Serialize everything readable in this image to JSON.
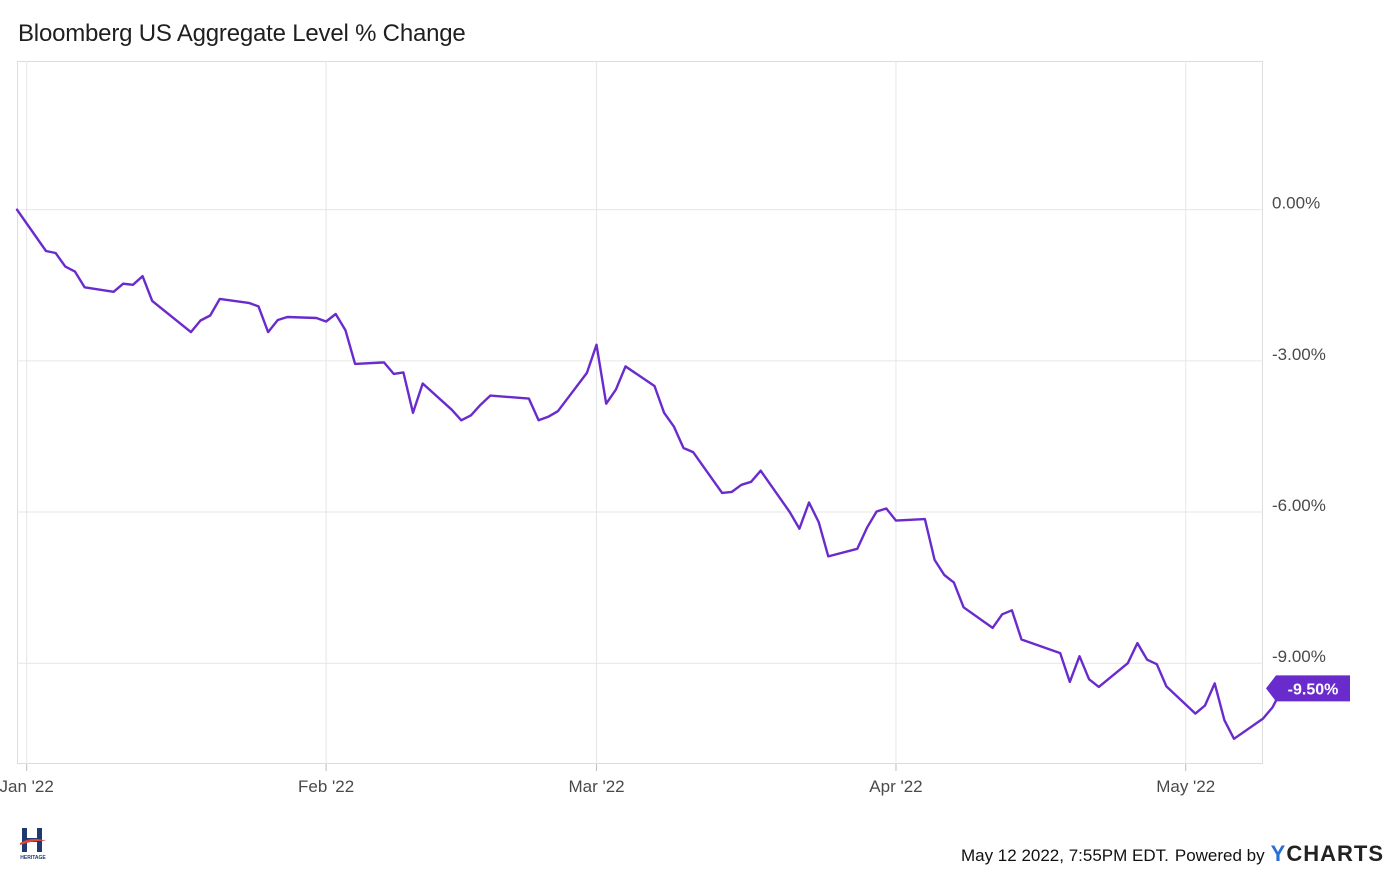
{
  "title": "Bloomberg US Aggregate Level % Change",
  "footer": {
    "timestamp": "May 12 2022, 7:55PM EDT.",
    "powered": "Powered by",
    "brand_y": "Y",
    "brand_rest": "CHARTS"
  },
  "logo": {
    "name": "heritage-financial-logo",
    "text": "HERITAGE"
  },
  "colors": {
    "series": "#6a2bcc",
    "badge": "#6a2bcc",
    "grid": "#e6e6e6"
  },
  "chart_data": {
    "type": "line",
    "title": "Bloomberg US Aggregate Level % Change",
    "xlabel": "",
    "ylabel": "",
    "x_ticks": [
      {
        "label": "Jan '22",
        "date": "2022-01-01"
      },
      {
        "label": "Feb '22",
        "date": "2022-02-01"
      },
      {
        "label": "Mar '22",
        "date": "2022-03-01"
      },
      {
        "label": "Apr '22",
        "date": "2022-04-01"
      },
      {
        "label": "May '22",
        "date": "2022-05-01"
      }
    ],
    "y_ticks": [
      {
        "label": "0.00%",
        "value": 0
      },
      {
        "label": "-3.00%",
        "value": -3
      },
      {
        "label": "-6.00%",
        "value": -6
      },
      {
        "label": "-9.00%",
        "value": -9
      }
    ],
    "ylim": [
      -11.0,
      2.95
    ],
    "xlim": [
      "2021-12-31",
      "2022-05-09"
    ],
    "grid": true,
    "last_value_label": "-9.50%",
    "series": [
      {
        "values": [
          [
            "2021-12-31",
            0.0
          ],
          [
            "2022-01-03",
            -0.82
          ],
          [
            "2022-01-04",
            -0.86
          ],
          [
            "2022-01-05",
            -1.13
          ],
          [
            "2022-01-06",
            -1.23
          ],
          [
            "2022-01-07",
            -1.54
          ],
          [
            "2022-01-10",
            -1.63
          ],
          [
            "2022-01-11",
            -1.47
          ],
          [
            "2022-01-12",
            -1.49
          ],
          [
            "2022-01-13",
            -1.32
          ],
          [
            "2022-01-14",
            -1.81
          ],
          [
            "2022-01-18",
            -2.43
          ],
          [
            "2022-01-19",
            -2.2
          ],
          [
            "2022-01-20",
            -2.1
          ],
          [
            "2022-01-21",
            -1.77
          ],
          [
            "2022-01-24",
            -1.85
          ],
          [
            "2022-01-25",
            -1.92
          ],
          [
            "2022-01-26",
            -2.43
          ],
          [
            "2022-01-27",
            -2.19
          ],
          [
            "2022-01-28",
            -2.13
          ],
          [
            "2022-01-31",
            -2.15
          ],
          [
            "2022-02-01",
            -2.22
          ],
          [
            "2022-02-02",
            -2.07
          ],
          [
            "2022-02-03",
            -2.39
          ],
          [
            "2022-02-04",
            -3.06
          ],
          [
            "2022-02-07",
            -3.03
          ],
          [
            "2022-02-08",
            -3.26
          ],
          [
            "2022-02-09",
            -3.23
          ],
          [
            "2022-02-10",
            -4.03
          ],
          [
            "2022-02-11",
            -3.45
          ],
          [
            "2022-02-14",
            -3.97
          ],
          [
            "2022-02-15",
            -4.18
          ],
          [
            "2022-02-16",
            -4.08
          ],
          [
            "2022-02-17",
            -3.87
          ],
          [
            "2022-02-18",
            -3.69
          ],
          [
            "2022-02-22",
            -3.75
          ],
          [
            "2022-02-23",
            -4.18
          ],
          [
            "2022-02-24",
            -4.11
          ],
          [
            "2022-02-25",
            -4.0
          ],
          [
            "2022-02-28",
            -3.24
          ],
          [
            "2022-03-01",
            -2.68
          ],
          [
            "2022-03-02",
            -3.85
          ],
          [
            "2022-03-03",
            -3.57
          ],
          [
            "2022-03-04",
            -3.11
          ],
          [
            "2022-03-07",
            -3.5
          ],
          [
            "2022-03-08",
            -4.03
          ],
          [
            "2022-03-09",
            -4.3
          ],
          [
            "2022-03-10",
            -4.73
          ],
          [
            "2022-03-11",
            -4.81
          ],
          [
            "2022-03-14",
            -5.62
          ],
          [
            "2022-03-15",
            -5.6
          ],
          [
            "2022-03-16",
            -5.46
          ],
          [
            "2022-03-17",
            -5.4
          ],
          [
            "2022-03-18",
            -5.18
          ],
          [
            "2022-03-21",
            -6.0
          ],
          [
            "2022-03-22",
            -6.33
          ],
          [
            "2022-03-23",
            -5.81
          ],
          [
            "2022-03-24",
            -6.2
          ],
          [
            "2022-03-25",
            -6.88
          ],
          [
            "2022-03-28",
            -6.73
          ],
          [
            "2022-03-29",
            -6.31
          ],
          [
            "2022-03-30",
            -5.99
          ],
          [
            "2022-03-31",
            -5.93
          ],
          [
            "2022-04-01",
            -6.17
          ],
          [
            "2022-04-04",
            -6.14
          ],
          [
            "2022-04-05",
            -6.95
          ],
          [
            "2022-04-06",
            -7.25
          ],
          [
            "2022-04-07",
            -7.4
          ],
          [
            "2022-04-08",
            -7.89
          ],
          [
            "2022-04-11",
            -8.3
          ],
          [
            "2022-04-12",
            -8.03
          ],
          [
            "2022-04-13",
            -7.95
          ],
          [
            "2022-04-14",
            -8.53
          ],
          [
            "2022-04-18",
            -8.8
          ],
          [
            "2022-04-19",
            -9.37
          ],
          [
            "2022-04-20",
            -8.86
          ],
          [
            "2022-04-21",
            -9.32
          ],
          [
            "2022-04-22",
            -9.47
          ],
          [
            "2022-04-25",
            -9.0
          ],
          [
            "2022-04-26",
            -8.6
          ],
          [
            "2022-04-27",
            -8.93
          ],
          [
            "2022-04-28",
            -9.02
          ],
          [
            "2022-04-29",
            -9.46
          ],
          [
            "2022-05-02",
            -10.0
          ],
          [
            "2022-05-03",
            -9.84
          ],
          [
            "2022-05-04",
            -9.4
          ],
          [
            "2022-05-05",
            -10.13
          ],
          [
            "2022-05-06",
            -10.5
          ],
          [
            "2022-05-09",
            -10.1
          ],
          [
            "2022-05-10",
            -9.87
          ],
          [
            "2022-05-11",
            -9.5
          ]
        ]
      }
    ]
  }
}
